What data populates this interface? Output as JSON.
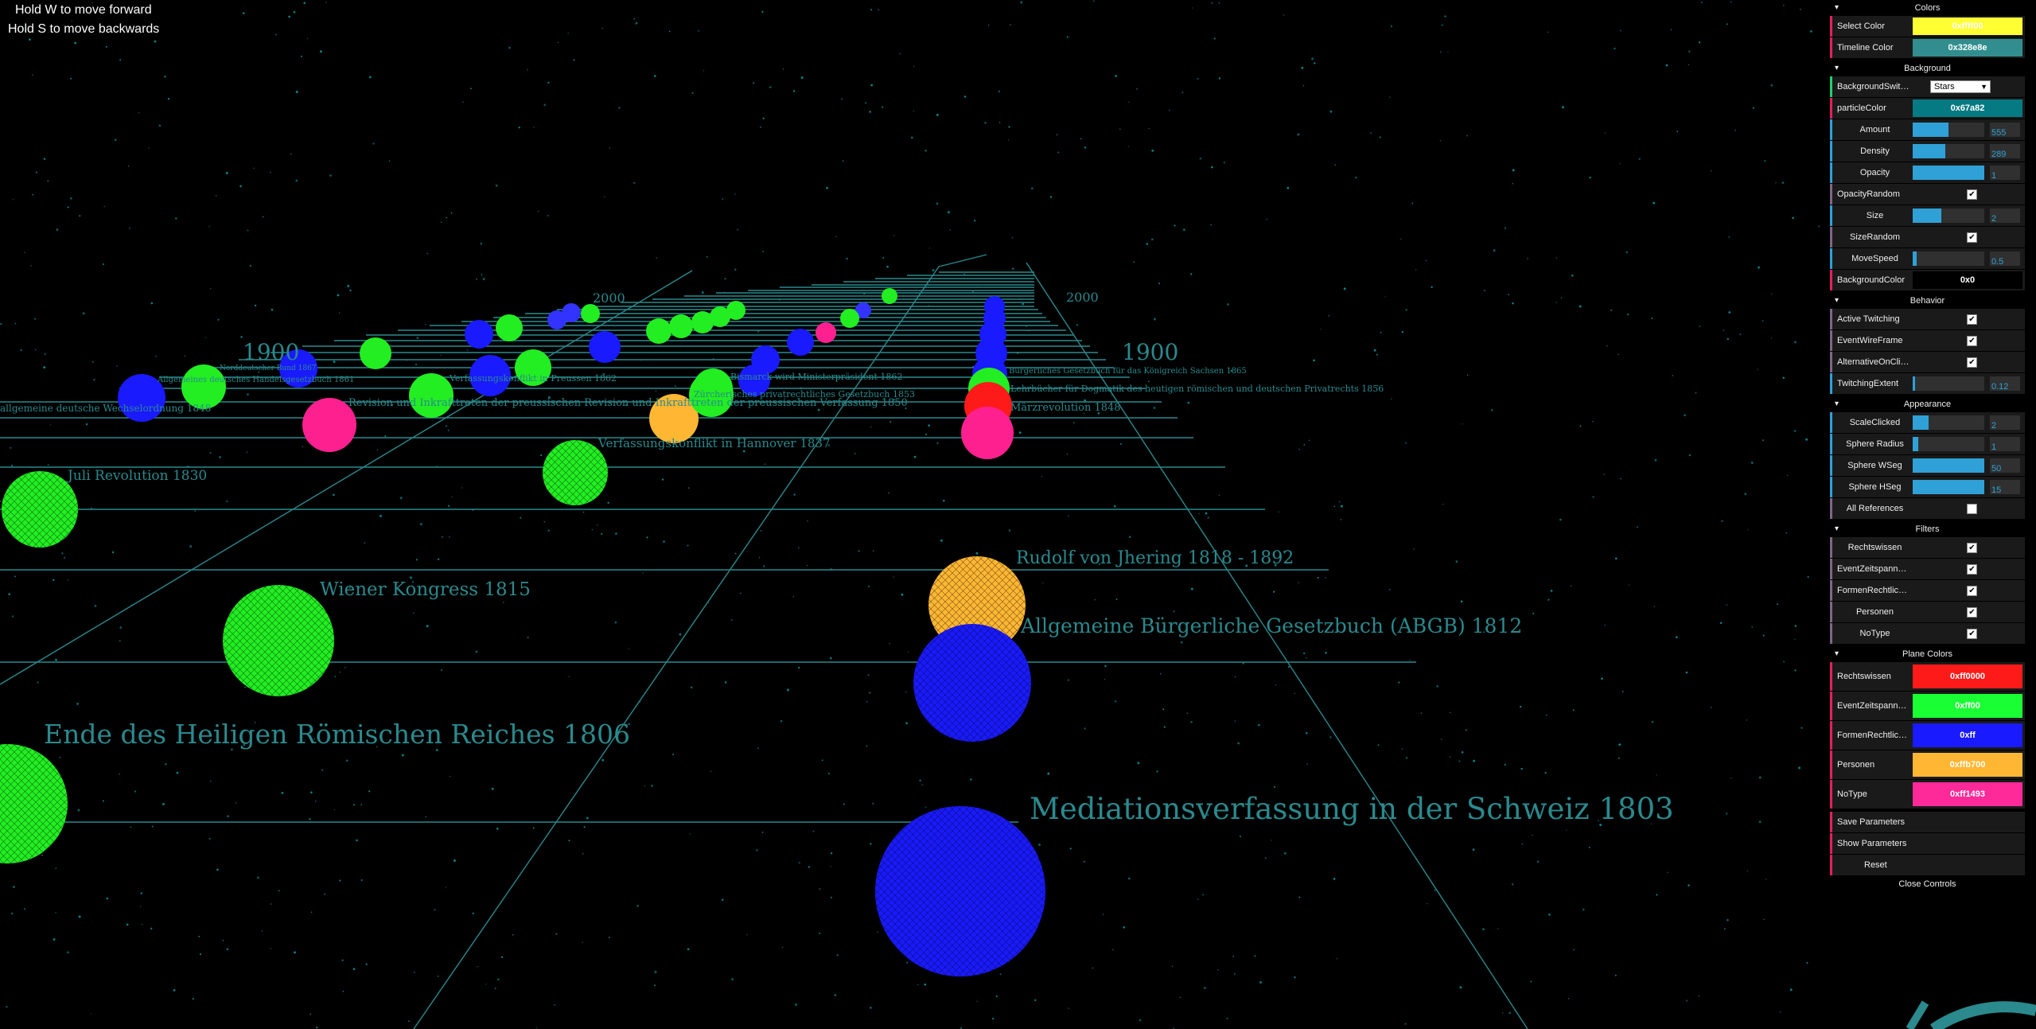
{
  "hints": [
    "Hold W to move forward",
    "Hold S to move backwards"
  ],
  "scene": {
    "year_labels": [
      "2000",
      "1900",
      "1900",
      "1900",
      "2000"
    ],
    "events": [
      {
        "label": "Mediationsverfassung in der Schweiz 1803",
        "color": "#0000ff"
      },
      {
        "label": "Ende des Heiligen Römischen Reiches 1806",
        "color": "#00ff00"
      },
      {
        "label": "Allgemeine Bürgerliche Gesetzbuch (ABGB) 1812",
        "color": "#0000ff"
      },
      {
        "label": "Wiener Kongress 1815",
        "color": "#00ff00"
      },
      {
        "label": "Rudolf von Jhering 1818 - 1892",
        "color": "#ffb700"
      },
      {
        "label": "Juli Revolution 1830",
        "color": "#00ff00"
      },
      {
        "label": "Verfassungskonflikt in Hannover 1837",
        "color": "#00ff00"
      },
      {
        "label": "Märzrevolution 1848",
        "color": "#ff1493"
      },
      {
        "label": "Lehrbücher für Dogmatik des heutigen römischen und deutschen Privatrechts 1856",
        "color": "#00ff00"
      },
      {
        "label": "Revision und Inkrafttreten der preussischen Revision und Inkrafttreten der preussischen Verfassung 1850",
        "color": "#ff1493"
      },
      {
        "label": "allgemeine deutsche Wechselordnung 1848",
        "color": "#0000ff"
      },
      {
        "label": "Zürcherisches privatrechtliches Gesetzbuch 1853",
        "color": "#00ff00"
      },
      {
        "label": "Bismarck wird Ministerpräsident 1862",
        "color": "#0000ff"
      },
      {
        "label": "Verfassungskonflikt in Preussen 1862",
        "color": "#00ff00"
      },
      {
        "label": "Allgemeines deutsches Handelsgesetzbuch 1861",
        "color": "#00ff00"
      },
      {
        "label": "Bürgerliches Gesetzbuch für das Königreich Sachsen 1865",
        "color": "#0000ff"
      },
      {
        "label": "Norddeutscher Bund 1867",
        "color": "#0000ff"
      }
    ]
  },
  "gui": {
    "colors_title": "Colors",
    "select_color": {
      "label": "Select Color",
      "value": "0xffff00",
      "color": "#ffff33"
    },
    "timeline_color": {
      "label": "Timeline Color",
      "value": "0x328e8e",
      "color": "#328e8e"
    },
    "background_title": "Background",
    "background_switch": {
      "label": "BackgroundSwit…",
      "value": "Stars"
    },
    "particle_color": {
      "label": "particleColor",
      "value": "0x67a82",
      "color": "#067a82"
    },
    "amount": {
      "label": "Amount",
      "value": "555",
      "fill": 0.5
    },
    "density": {
      "label": "Density",
      "value": "289",
      "fill": 0.45
    },
    "opacity": {
      "label": "Opacity",
      "value": "1",
      "fill": 1.0
    },
    "opacity_random": {
      "label": "OpacityRandom",
      "checked": "✔"
    },
    "size": {
      "label": "Size",
      "value": "2",
      "fill": 0.4
    },
    "size_random": {
      "label": "SizeRandom",
      "checked": "✔"
    },
    "move_speed": {
      "label": "MoveSpeed",
      "value": "0.5",
      "fill": 0.05
    },
    "background_color": {
      "label": "BackgroundColor",
      "value": "0x0"
    },
    "behavior_title": "Behavior",
    "active_twitching": {
      "label": "Active Twitching",
      "checked": "✔"
    },
    "event_wireframe": {
      "label": "EventWireFrame",
      "checked": "✔"
    },
    "alternative_on_click": {
      "label": "AlternativeOnCli…",
      "checked": "✔"
    },
    "twitching_extent": {
      "label": "TwitchingExtent",
      "value": "0.12",
      "fill": 0.03
    },
    "appearance_title": "Appearance",
    "scale_clicked": {
      "label": "ScaleClicked",
      "value": "2",
      "fill": 0.22
    },
    "sphere_radius": {
      "label": "Sphere Radius",
      "value": "1",
      "fill": 0.08
    },
    "sphere_wseg": {
      "label": "Sphere WSeg",
      "value": "50",
      "fill": 1.0
    },
    "sphere_hseg": {
      "label": "Sphere HSeg",
      "value": "15",
      "fill": 1.0
    },
    "all_references": {
      "label": "All References",
      "checked": ""
    },
    "filters_title": "Filters",
    "filters": [
      {
        "label": "Rechtswissen",
        "checked": "✔"
      },
      {
        "label": "EventZeitspann…",
        "checked": "✔"
      },
      {
        "label": "FormenRechtlic…",
        "checked": "✔"
      },
      {
        "label": "Personen",
        "checked": "✔"
      },
      {
        "label": "NoType",
        "checked": "✔"
      }
    ],
    "plane_colors_title": "Plane Colors",
    "plane_colors": [
      {
        "label": "Rechtswissen",
        "value": "0xff0000",
        "color": "#ff1a1a"
      },
      {
        "label": "EventZeitspann…",
        "value": "0xff00",
        "color": "#1aff33"
      },
      {
        "label": "FormenRechtlic…",
        "value": "0xff",
        "color": "#1a1aff"
      },
      {
        "label": "Personen",
        "value": "0xffb700",
        "color": "#ffb733"
      },
      {
        "label": "NoType",
        "value": "0xff1493",
        "color": "#ff2a99"
      }
    ],
    "buttons": [
      "Save Parameters",
      "Show Parameters",
      "Reset"
    ],
    "close_label": "Close Controls"
  }
}
